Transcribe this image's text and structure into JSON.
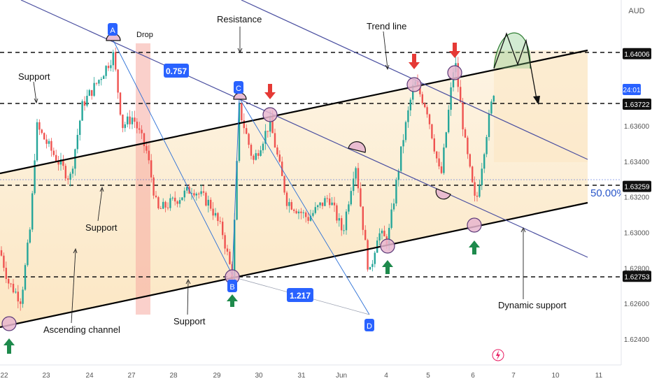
{
  "chart_data": {
    "type": "candlestick",
    "currency": "AUD",
    "price_axis": {
      "unit_label": "AUD",
      "ticks": [
        "1.62400",
        "1.62600",
        "1.62800",
        "1.63000",
        "1.63200",
        "1.63400",
        "1.63600"
      ],
      "range": [
        1.6228,
        1.6445
      ]
    },
    "date_axis": {
      "ticks": [
        "22",
        "23",
        "24",
        "27",
        "28",
        "29",
        "30",
        "31",
        "Jun",
        "4",
        "5",
        "6",
        "7",
        "10",
        "11"
      ]
    },
    "level_badges": [
      {
        "label": "1.64006",
        "value": 1.64006,
        "style": "black"
      },
      {
        "label": "1.63722",
        "value": 1.63722,
        "style": "black"
      },
      {
        "label": "1.63259",
        "value": 1.63259,
        "style": "black"
      },
      {
        "label": "1.62753",
        "value": 1.62753,
        "style": "black"
      },
      {
        "label": "24:01",
        "value": 1.6371,
        "style": "blue"
      }
    ],
    "fib_label": "50.00%",
    "annotations": {
      "resistance": "Resistance",
      "trend_line": "Trend line",
      "support": "Support",
      "drop": "Drop",
      "ascending_channel": "Ascending channel",
      "dynamic_support": "Dynamic support",
      "ratio_1": "0.757",
      "ratio_2": "1.217",
      "point_a": "A",
      "point_b": "B",
      "point_c": "C",
      "point_d": "D"
    },
    "colors": {
      "up": "#26a69a",
      "down": "#ef5350",
      "channel_fill": "#fde9c2",
      "drop_zone": "#f5a9a0",
      "trend_line": "#4a4fa0",
      "blue_label": "#2962ff",
      "arrow_up": "#1e8a4c",
      "arrow_down": "#e53935",
      "projection": "#6fbf73"
    }
  }
}
